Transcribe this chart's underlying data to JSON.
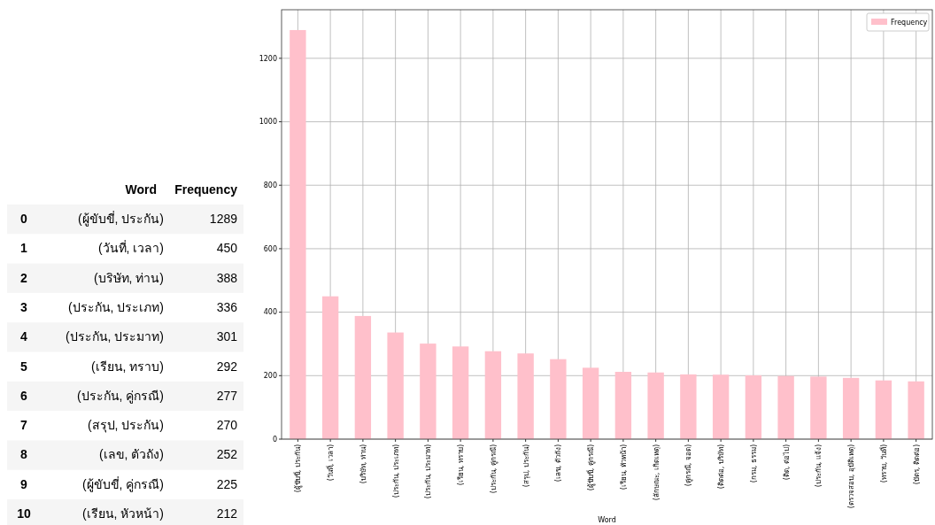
{
  "chart_data": {
    "type": "bar",
    "xlabel": "Word",
    "categories": [
      "(ผู้ขับขี่, ประกัน)",
      "(วันที่, เวลา)",
      "(บริษัท, ท่าน)",
      "(ประกัน, ประเภท)",
      "(ประกัน, ประมาท)",
      "(เรียน, ทราบ)",
      "(ประกัน, คู่กรณี)",
      "(สรุป, ประกัน)",
      "(เลข, ตัวถัง)",
      "(ผู้ขับขี่, คู่กรณี)",
      "(เรียน, หัวหน้า)",
      "(ลักษณะ, เกิดเหตุ)",
      "(คู่กรณี, จอด)",
      "(ติดต่อ, บริษัท)",
      "(กรม, ธรรม)",
      "(ติด, ต่อไป)",
      "(ประกัน, แจ้ง)",
      "(ตรวจสอบ, อุบัติเหตุ)",
      "(ทราบ, วันที่)",
      "(บัตร, ติดต่อ)"
    ],
    "series": [
      {
        "name": "Frequency",
        "color": "#ffc0cb",
        "values": [
          1289,
          450,
          388,
          336,
          301,
          292,
          277,
          270,
          252,
          225,
          212,
          210,
          204,
          203,
          201,
          199,
          197,
          193,
          185,
          182
        ]
      }
    ],
    "value_labels": [
      "1289",
      "450",
      "388",
      "336",
      "301",
      "292",
      "277",
      "270",
      "252",
      "225",
      "212",
      null,
      null,
      null,
      null,
      null,
      null,
      null,
      null,
      null
    ],
    "annotations": [
      "0",
      "1",
      "2",
      "3",
      "4",
      "5",
      "6",
      "7",
      "8",
      "9",
      "10"
    ],
    "ylim": [
      0,
      1353
    ],
    "yticks": [
      0,
      200,
      400,
      600,
      800,
      1000,
      1200
    ],
    "grid": true,
    "legend": "top right"
  }
}
